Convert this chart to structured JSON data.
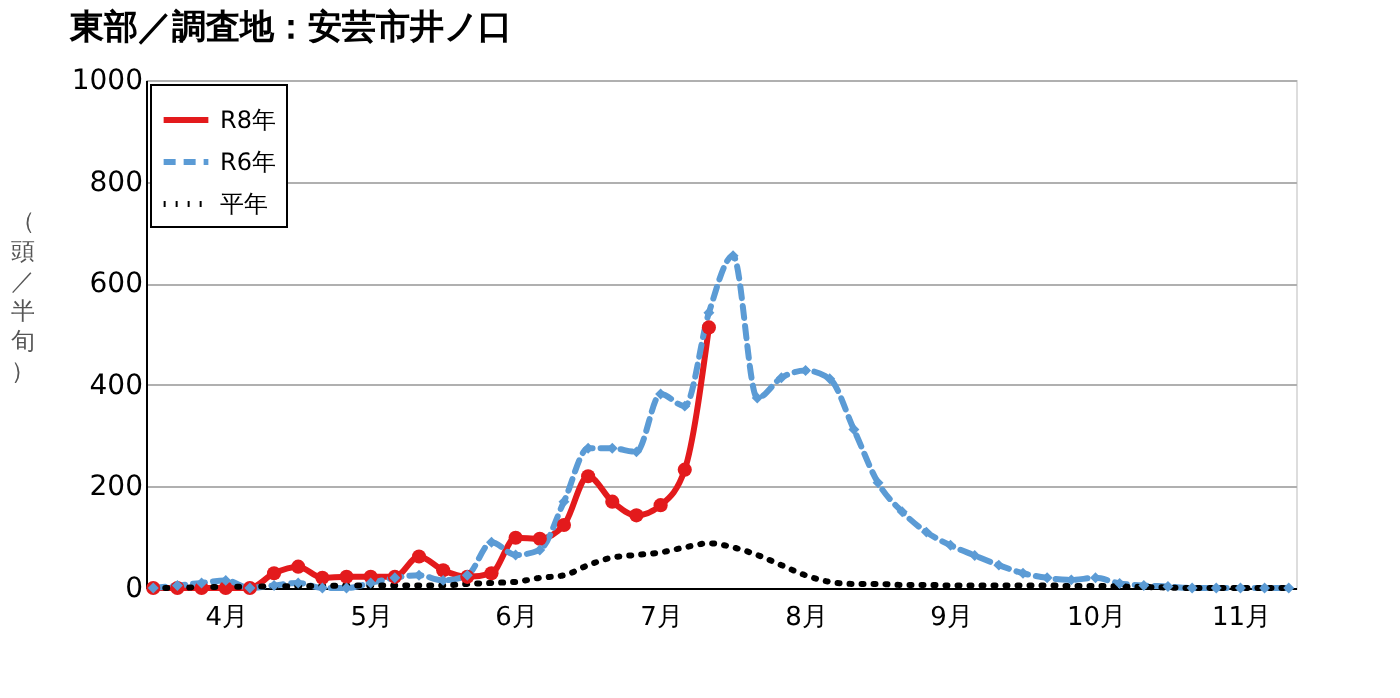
{
  "chart_data": {
    "type": "line",
    "title": "東部／調査地：安芸市井ノ口",
    "ylabel": "（頭／半旬）",
    "categories": [
      null,
      null,
      null,
      "4月",
      null,
      null,
      null,
      null,
      null,
      "5月",
      null,
      null,
      null,
      null,
      null,
      "6月",
      null,
      null,
      null,
      null,
      null,
      "7月",
      null,
      null,
      null,
      null,
      null,
      "8月",
      null,
      null,
      null,
      null,
      null,
      "9月",
      null,
      null,
      null,
      null,
      null,
      "10月",
      null,
      null,
      null,
      null,
      null,
      "11月",
      null,
      null
    ],
    "series": [
      {
        "name": "R8年",
        "color": "#e31a1c",
        "marker": "circle",
        "line_style": "solid",
        "values": [
          0,
          0,
          0,
          0,
          0,
          29,
          42,
          20,
          22,
          22,
          22,
          62,
          35,
          22,
          29,
          99,
          97,
          124,
          220,
          170,
          143,
          163,
          233,
          513,
          null,
          null,
          null,
          null,
          null,
          null,
          null,
          null,
          null,
          null,
          null,
          null,
          null,
          null,
          null,
          null,
          null,
          null,
          null,
          null,
          null,
          null,
          null,
          null
        ]
      },
      {
        "name": "R6年",
        "color": "#5b9bd5",
        "marker": "diamond",
        "line_style": "dashed",
        "values": [
          0,
          5,
          10,
          15,
          0,
          5,
          10,
          0,
          0,
          10,
          20,
          25,
          15,
          25,
          90,
          65,
          75,
          170,
          275,
          275,
          268,
          382,
          358,
          542,
          654,
          374,
          414,
          428,
          412,
          312,
          207,
          150,
          110,
          84,
          64,
          45,
          29,
          20,
          16,
          20,
          9,
          5,
          3,
          0,
          0,
          0,
          0,
          0
        ]
      },
      {
        "name": "平年",
        "color": "#000000",
        "marker": "none",
        "line_style": "dotted",
        "values": [
          0,
          0,
          2,
          2,
          3,
          3,
          4,
          4,
          5,
          5,
          5,
          5,
          5,
          8,
          10,
          12,
          20,
          25,
          45,
          60,
          65,
          70,
          80,
          88,
          80,
          65,
          45,
          25,
          12,
          8,
          8,
          6,
          6,
          5,
          5,
          5,
          5,
          5,
          4,
          4,
          3,
          2,
          1,
          0,
          0,
          0,
          0,
          0
        ]
      }
    ],
    "ylim": [
      0,
      1000
    ],
    "yticks": [
      0,
      200,
      400,
      600,
      800,
      1000
    ],
    "grid": "y",
    "legend": "top left"
  }
}
